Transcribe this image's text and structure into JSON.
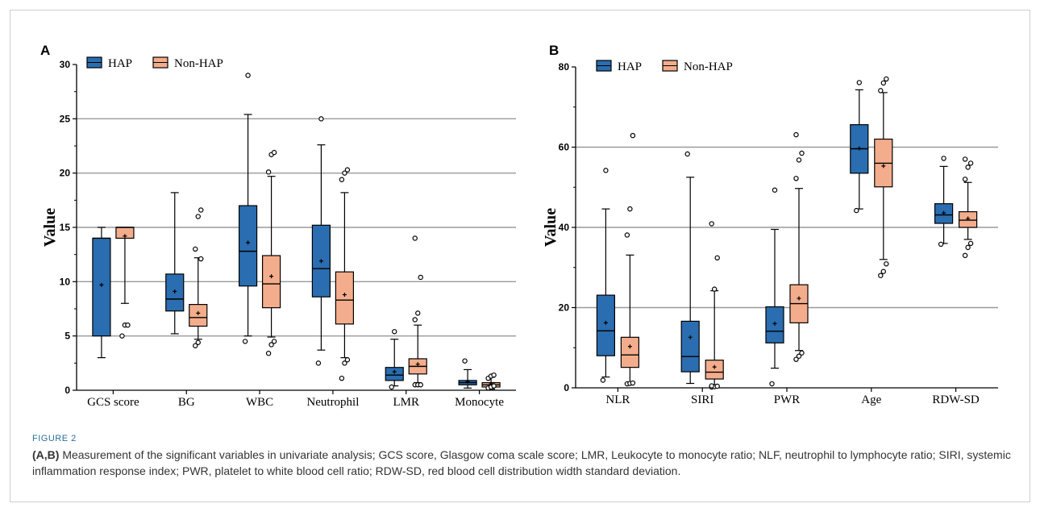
{
  "figure_label": "FIGURE 2",
  "caption": {
    "lead": "(A,B)",
    "text": " Measurement of the significant variables in univariate analysis; GCS score, Glasgow coma scale score; LMR, Leukocyte to monocyte ratio; NLF, neutrophil to lymphocyte ratio; SIRI, systemic inflammation response index; PWR, platelet to white blood cell ratio; RDW-SD, red blood cell distribution width standard deviation."
  },
  "colors": {
    "hap": "#2a6db0",
    "nonhap": "#f4ad8c",
    "grid": "#9a9a9a"
  },
  "chart_data": [
    {
      "panel": "A",
      "type": "box",
      "ylabel": "Value",
      "ylim": [
        0,
        30
      ],
      "yticks": [
        0,
        5,
        10,
        15,
        20,
        25,
        30
      ],
      "grid": true,
      "legend_position": "top-left",
      "series_names": [
        "HAP",
        "Non-HAP"
      ],
      "categories": [
        "GCS score",
        "BG",
        "WBC",
        "Neutrophil",
        "LMR",
        "Monocyte"
      ],
      "boxes": [
        [
          {
            "min": 3,
            "q1": 5,
            "median": 14,
            "q3": 14,
            "max": 15,
            "mean": 9.7,
            "outliers": []
          },
          {
            "min": 8,
            "q1": 14,
            "median": 15,
            "q3": 15,
            "max": 15,
            "mean": 14.2,
            "outliers": [
              5,
              6,
              6
            ]
          }
        ],
        [
          {
            "min": 5.2,
            "q1": 7.3,
            "median": 8.4,
            "q3": 10.7,
            "max": 18.2,
            "mean": 9.1,
            "outliers": []
          },
          {
            "min": 4.7,
            "q1": 5.9,
            "median": 6.7,
            "q3": 7.9,
            "max": 12.2,
            "mean": 7.1,
            "outliers": [
              4.1,
              4.4,
              12.1,
              13,
              16,
              16.6
            ]
          }
        ],
        [
          {
            "min": 5,
            "q1": 9.6,
            "median": 12.8,
            "q3": 17,
            "max": 25.4,
            "mean": 13.6,
            "outliers": [
              4.5,
              29
            ]
          },
          {
            "min": 4.9,
            "q1": 7.6,
            "median": 9.8,
            "q3": 12.4,
            "max": 19.7,
            "mean": 10.5,
            "outliers": [
              3.4,
              4.2,
              4.5,
              20.1,
              21.7,
              21.9
            ]
          }
        ],
        [
          {
            "min": 3.7,
            "q1": 8.6,
            "median": 11.2,
            "q3": 15.2,
            "max": 22.6,
            "mean": 11.9,
            "outliers": [
              2.5,
              25
            ]
          },
          {
            "min": 3,
            "q1": 6.1,
            "median": 8.3,
            "q3": 10.9,
            "max": 18.2,
            "mean": 8.8,
            "outliers": [
              1.1,
              2.5,
              2.8,
              19.4,
              20,
              20.3
            ]
          }
        ],
        [
          {
            "min": 0.4,
            "q1": 0.9,
            "median": 1.4,
            "q3": 2.1,
            "max": 4.7,
            "mean": 1.7,
            "outliers": [
              0.3,
              5.4
            ]
          },
          {
            "min": 0.7,
            "q1": 1.5,
            "median": 2.2,
            "q3": 2.9,
            "max": 6,
            "mean": 2.4,
            "outliers": [
              0.5,
              0.5,
              0.5,
              6.5,
              7.1,
              10.4,
              14
            ]
          }
        ],
        [
          {
            "min": 0.2,
            "q1": 0.5,
            "median": 0.7,
            "q3": 0.9,
            "max": 1.9,
            "mean": 0.8,
            "outliers": [
              2.7
            ]
          },
          {
            "min": 0.1,
            "q1": 0.3,
            "median": 0.5,
            "q3": 0.7,
            "max": 1.2,
            "mean": 0.6,
            "outliers": [
              0.2,
              0.3,
              0.4,
              1.1,
              1.3,
              1.4
            ]
          }
        ]
      ]
    },
    {
      "panel": "B",
      "type": "box",
      "ylabel": "Value",
      "ylim": [
        0,
        80
      ],
      "yticks": [
        0,
        20,
        40,
        60,
        80
      ],
      "grid": true,
      "legend_position": "top-left",
      "series_names": [
        "HAP",
        "Non-HAP"
      ],
      "categories": [
        "NLR",
        "SIRI",
        "PWR",
        "Age",
        "RDW-SD"
      ],
      "boxes": [
        [
          {
            "min": 2.7,
            "q1": 8,
            "median": 14.2,
            "q3": 23.1,
            "max": 44.6,
            "mean": 16.2,
            "outliers": [
              1.9,
              54.2
            ]
          },
          {
            "min": 1.3,
            "q1": 5.1,
            "median": 8.2,
            "q3": 12.6,
            "max": 33.1,
            "mean": 10.3,
            "outliers": [
              1,
              1.1,
              1.2,
              38.1,
              44.6,
              62.9
            ]
          }
        ],
        [
          {
            "min": 1.1,
            "q1": 4,
            "median": 7.8,
            "q3": 16.6,
            "max": 52.5,
            "mean": 12.6,
            "outliers": [
              58.3
            ]
          },
          {
            "min": 0.8,
            "q1": 2.2,
            "median": 3.9,
            "q3": 6.9,
            "max": 24.2,
            "mean": 5.2,
            "outliers": [
              0.2,
              0.3,
              0.4,
              0.5,
              24.6,
              32.4,
              40.9
            ]
          }
        ],
        [
          {
            "min": 4.9,
            "q1": 11.2,
            "median": 14.1,
            "q3": 20.2,
            "max": 39.5,
            "mean": 16,
            "outliers": [
              1,
              49.3
            ]
          },
          {
            "min": 9.3,
            "q1": 16.2,
            "median": 21,
            "q3": 25.7,
            "max": 49.7,
            "mean": 22.3,
            "outliers": [
              7.1,
              7.9,
              8.7,
              52.2,
              56.8,
              58.5,
              63.1
            ]
          }
        ],
        [
          {
            "min": 44.6,
            "q1": 53.5,
            "median": 59.6,
            "q3": 65.6,
            "max": 74.3,
            "mean": 59.7,
            "outliers": [
              44.2,
              76.1
            ]
          },
          {
            "min": 32,
            "q1": 50.1,
            "median": 56,
            "q3": 62,
            "max": 73.6,
            "mean": 55.3,
            "outliers": [
              28,
              29,
              30.9,
              74.1,
              76,
              77
            ]
          }
        ],
        [
          {
            "min": 36,
            "q1": 41,
            "median": 43.1,
            "q3": 45.9,
            "max": 55.2,
            "mean": 43.6,
            "outliers": [
              35.8,
              57.2
            ]
          },
          {
            "min": 37,
            "q1": 40,
            "median": 41.8,
            "q3": 43.9,
            "max": 51.2,
            "mean": 42.2,
            "outliers": [
              33,
              35,
              36,
              52,
              55,
              56,
              57
            ]
          }
        ]
      ]
    }
  ]
}
